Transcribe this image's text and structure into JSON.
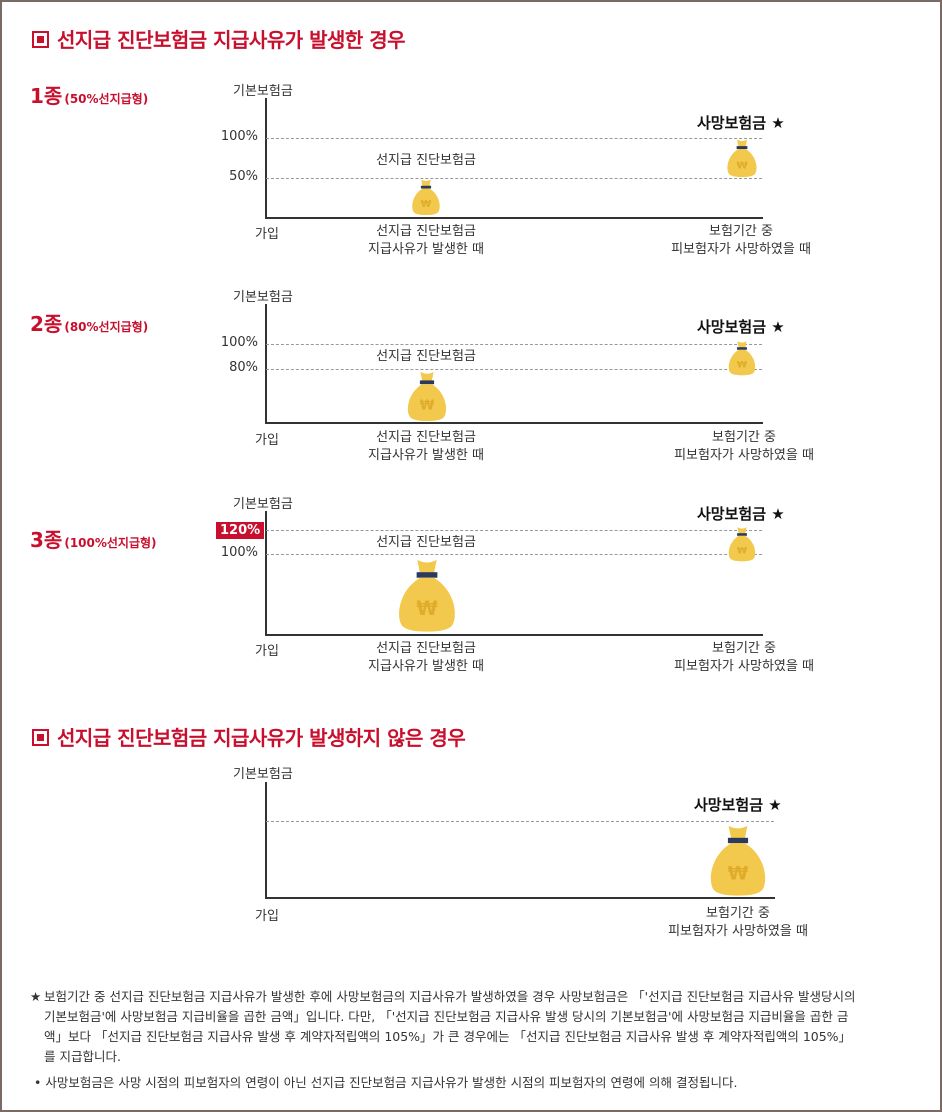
{
  "section1": {
    "title": "선지급 진단보험금 지급사유가 발생한 경우"
  },
  "section2": {
    "title": "선지급 진단보험금 지급사유가 발생하지 않은 경우"
  },
  "common": {
    "y_axis_label": "기본보험금",
    "x_start": "가입",
    "x_advance_line1": "선지급 진단보험금",
    "x_advance_line2": "지급사유가 발생한 때",
    "x_death_line1": "보험기간 중",
    "x_death_line2": "피보험자가 사망하였을 때",
    "advance_label": "선지급 진단보험금",
    "death_label": "사망보험금 ★",
    "bag_symbol": "₩"
  },
  "types": [
    {
      "name": "1종",
      "desc": "(50%선지급형)",
      "tick_high": "100%",
      "tick_low": "50%",
      "advance_ratio": 0.5,
      "death_ratio": 1.0
    },
    {
      "name": "2종",
      "desc": "(80%선지급형)",
      "tick_high": "100%",
      "tick_low": "80%",
      "advance_ratio": 0.8,
      "death_ratio": 1.0
    },
    {
      "name": "3종",
      "desc": "(100%선지급형)",
      "tick_high": "120%",
      "tick_low": "100%",
      "advance_ratio": 1.0,
      "death_ratio": 1.0
    }
  ],
  "notes": {
    "star": "★",
    "star_text": "보험기간 중 선지급 진단보험금 지급사유가 발생한 후에 사망보험금의 지급사유가 발생하였을 경우 사망보험금은 「'선지급 진단보험금 지급사유 발생당시의 기본보험금'에 사망보험금 지급비율을 곱한 금액」입니다. 다만, 「'선지급 진단보험금 지급사유 발생 당시의 기본보험금'에 사망보험금 지급비율을 곱한 금액」보다 「선지급 진단보험금 지급사유 발생 후 계약자적립액의 105%」가 큰 경우에는 「선지급 진단보험금 지급사유 발생 후 계약자적립액의 105%」를 지급합니다.",
    "bullet_text": "• 사망보험금은 사망 시점의 피보험자의 연령이 아닌 선지급 진단보험금 지급사유가 발생한 시점의 피보험자의 연령에 의해 결정됩니다."
  },
  "colors": {
    "accent": "#c8102e",
    "bag": "#f2c94c",
    "bag_dark": "#e0ac2b",
    "bag_band": "#2b3a5c"
  }
}
